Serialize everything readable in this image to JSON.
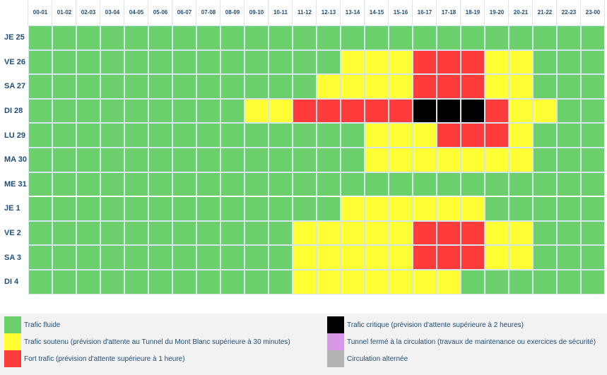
{
  "chart_data": {
    "type": "heatmap",
    "hours": [
      "00-01",
      "01-02",
      "02-03",
      "03-04",
      "04-05",
      "05-06",
      "06-07",
      "07-08",
      "08-09",
      "09-10",
      "10-11",
      "11-12",
      "12-13",
      "13-14",
      "14-15",
      "15-16",
      "16-17",
      "17-18",
      "18-19",
      "19-20",
      "20-21",
      "21-22",
      "22-23",
      "23-00"
    ],
    "days": [
      "JE 25",
      "VE 26",
      "SA 27",
      "DI 28",
      "LU 29",
      "MA 30",
      "ME 31",
      "JE 1",
      "VE 2",
      "SA 3",
      "DI 4"
    ],
    "levels": {
      "F": {
        "label": "Trafic fluide",
        "color": "#6bcf6b"
      },
      "S": {
        "label": "Trafic soutenu (prévision d'attente au Tunnel du Mont Blanc supérieure à 30 minutes)",
        "color": "#ffff33"
      },
      "R": {
        "label": "Fort trafic (prévision d'attente supérieure à 1 heure)",
        "color": "#ff3b3b"
      },
      "C": {
        "label": "Trafic critique (prévision d'attente supérieure à 2 heures)",
        "color": "#000000"
      },
      "T": {
        "label": "Tunnel fermé à la circulation (travaux de maintenance ou exercices de sécurité)",
        "color": "#d898e8"
      },
      "A": {
        "label": "Circulation alternée",
        "color": "#b3b3b3"
      }
    },
    "matrix": [
      [
        "F",
        "F",
        "F",
        "F",
        "F",
        "F",
        "F",
        "F",
        "F",
        "F",
        "F",
        "F",
        "F",
        "F",
        "F",
        "F",
        "F",
        "F",
        "F",
        "F",
        "F",
        "F",
        "F",
        "F"
      ],
      [
        "F",
        "F",
        "F",
        "F",
        "F",
        "F",
        "F",
        "F",
        "F",
        "F",
        "F",
        "F",
        "F",
        "S",
        "S",
        "S",
        "R",
        "R",
        "R",
        "S",
        "S",
        "F",
        "F",
        "F"
      ],
      [
        "F",
        "F",
        "F",
        "F",
        "F",
        "F",
        "F",
        "F",
        "F",
        "F",
        "F",
        "F",
        "S",
        "S",
        "S",
        "S",
        "R",
        "R",
        "R",
        "S",
        "S",
        "F",
        "F",
        "F"
      ],
      [
        "F",
        "F",
        "F",
        "F",
        "F",
        "F",
        "F",
        "F",
        "F",
        "S",
        "S",
        "R",
        "R",
        "R",
        "R",
        "R",
        "C",
        "C",
        "C",
        "R",
        "S",
        "S",
        "F",
        "F"
      ],
      [
        "F",
        "F",
        "F",
        "F",
        "F",
        "F",
        "F",
        "F",
        "F",
        "F",
        "F",
        "F",
        "F",
        "F",
        "S",
        "S",
        "S",
        "R",
        "R",
        "R",
        "S",
        "F",
        "F",
        "F"
      ],
      [
        "F",
        "F",
        "F",
        "F",
        "F",
        "F",
        "F",
        "F",
        "F",
        "F",
        "F",
        "F",
        "F",
        "F",
        "S",
        "S",
        "S",
        "S",
        "S",
        "S",
        "S",
        "F",
        "F",
        "F"
      ],
      [
        "F",
        "F",
        "F",
        "F",
        "F",
        "F",
        "F",
        "F",
        "F",
        "F",
        "F",
        "F",
        "F",
        "F",
        "F",
        "F",
        "F",
        "F",
        "F",
        "F",
        "F",
        "F",
        "F",
        "F"
      ],
      [
        "F",
        "F",
        "F",
        "F",
        "F",
        "F",
        "F",
        "F",
        "F",
        "F",
        "F",
        "F",
        "F",
        "S",
        "S",
        "S",
        "S",
        "S",
        "S",
        "F",
        "F",
        "F",
        "F",
        "F"
      ],
      [
        "F",
        "F",
        "F",
        "F",
        "F",
        "F",
        "F",
        "F",
        "F",
        "F",
        "F",
        "S",
        "S",
        "S",
        "S",
        "S",
        "R",
        "R",
        "R",
        "S",
        "S",
        "F",
        "F",
        "F"
      ],
      [
        "F",
        "F",
        "F",
        "F",
        "F",
        "F",
        "F",
        "F",
        "F",
        "F",
        "F",
        "S",
        "S",
        "S",
        "S",
        "S",
        "R",
        "R",
        "R",
        "S",
        "S",
        "F",
        "F",
        "F"
      ],
      [
        "F",
        "F",
        "F",
        "F",
        "F",
        "F",
        "F",
        "F",
        "F",
        "F",
        "F",
        "S",
        "S",
        "S",
        "S",
        "S",
        "S",
        "S",
        "F",
        "F",
        "F",
        "F",
        "F",
        "F"
      ]
    ],
    "legend_order": [
      "F",
      "S",
      "R",
      "C",
      "T",
      "A"
    ]
  }
}
